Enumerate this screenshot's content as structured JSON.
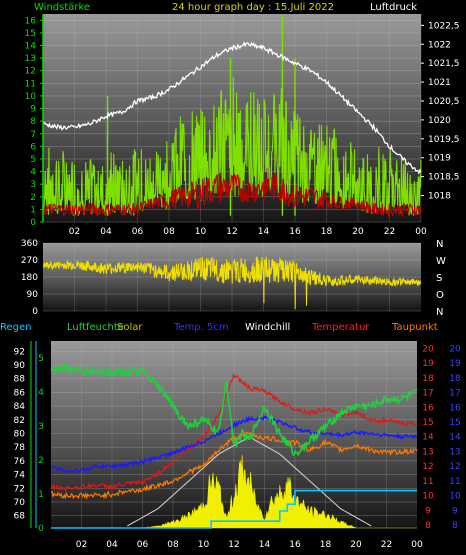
{
  "header": {
    "left": "Windstärke",
    "center": "24 hour graph day : 15.Juli 2022",
    "right": "Luftdruck"
  },
  "colors": {
    "wind": "#7fe000",
    "gust": "#c00000",
    "pressure": "#ffffff",
    "direction": "#f0e000",
    "humidity": "#20d040",
    "temperature": "#e01818",
    "dewpoint": "#ff7a00",
    "soil": "#1a1aff",
    "windchill": "#ffffff",
    "solar": "#f0f000",
    "rain": "#00c8ff",
    "axis_green": "#00e000",
    "axis_red": "#ff2020",
    "axis_blue": "#3030ff"
  },
  "chart_data": [
    {
      "type": "line",
      "title": "24 hour graph day : 15.Juli 2022",
      "x_ticks": [
        "02",
        "04",
        "06",
        "08",
        "10",
        "12",
        "14",
        "16",
        "18",
        "20",
        "22",
        "00"
      ],
      "xlim": [
        0,
        24
      ],
      "ylabel_left": "Windstärke",
      "ylim_left": [
        0,
        16.5
      ],
      "yticks_left": [
        "0",
        "1",
        "2",
        "3",
        "4",
        "5",
        "6",
        "7",
        "8",
        "9",
        "10",
        "11",
        "12",
        "13",
        "14",
        "15",
        "16"
      ],
      "ylabel_right": "Luftdruck",
      "ylim_right": [
        1017.3,
        1022.8
      ],
      "yticks_right": [
        "1018",
        "1018,5",
        "1019",
        "1019,5",
        "1020",
        "1020,5",
        "1021",
        "1021,5",
        "1022",
        "1022,5"
      ],
      "series": [
        {
          "name": "Luftdruck",
          "axis": "right",
          "x": [
            0,
            1,
            2,
            3,
            4,
            5,
            6,
            7,
            8,
            9,
            10,
            11,
            12,
            13,
            14,
            15,
            16,
            17,
            18,
            19,
            20,
            21,
            22,
            23,
            24
          ],
          "values": [
            1019.9,
            1019.8,
            1019.8,
            1019.9,
            1020.1,
            1020.2,
            1020.5,
            1020.6,
            1020.8,
            1021.1,
            1021.4,
            1021.7,
            1021.9,
            1022.0,
            1021.9,
            1021.7,
            1021.5,
            1021.3,
            1021.0,
            1020.6,
            1020.2,
            1019.8,
            1019.3,
            1018.9,
            1018.6
          ]
        }
      ],
      "wind_band_x": [
        0,
        1,
        2,
        3,
        4,
        5,
        6,
        7,
        8,
        9,
        10,
        11,
        12,
        13,
        14,
        15,
        16,
        17,
        18,
        19,
        20,
        21,
        22,
        23,
        24
      ],
      "wind_band_low": [
        0.5,
        0.5,
        0.5,
        0.5,
        0.5,
        0.5,
        0.5,
        1,
        1,
        1.5,
        1.5,
        2,
        2,
        2,
        2,
        2,
        1.5,
        1.5,
        1,
        1,
        1,
        0.5,
        0.5,
        0.5,
        0.5
      ],
      "wind_band_high": [
        6,
        6,
        5,
        5,
        6,
        5,
        6,
        6,
        7,
        9,
        9,
        10,
        12,
        11,
        10,
        11,
        10,
        8,
        8,
        7,
        6,
        6,
        6,
        5,
        5
      ],
      "wind_peaks": [
        {
          "x": 4.1,
          "y": 10
        },
        {
          "x": 11.9,
          "y": 13
        },
        {
          "x": 15.2,
          "y": 16.3
        },
        {
          "x": 16.0,
          "y": 13
        }
      ],
      "gust_band_x": [
        0,
        1,
        2,
        3,
        4,
        5,
        6,
        7,
        8,
        9,
        10,
        11,
        12,
        13,
        14,
        15,
        16,
        17,
        18,
        19,
        20,
        21,
        22,
        23,
        24
      ],
      "gust_band_low": [
        0.5,
        0.5,
        0.5,
        0.5,
        0.5,
        0.5,
        0.5,
        1,
        1,
        1,
        1,
        1.5,
        1.5,
        1.5,
        1.5,
        1.5,
        1,
        1,
        1,
        1,
        1,
        0.5,
        0.5,
        0.5,
        0.5
      ],
      "gust_band_high": [
        1.5,
        1.5,
        1.5,
        1.5,
        1.5,
        1.5,
        1.5,
        2,
        2.5,
        3,
        3.5,
        4,
        4,
        3.5,
        4,
        4,
        3,
        3,
        2.5,
        2,
        2,
        1.5,
        1.5,
        1.5,
        1.5
      ]
    },
    {
      "type": "line",
      "ylabel_left": "",
      "ylim": [
        0,
        360
      ],
      "yticks": [
        "0",
        "90",
        "180",
        "270",
        "360"
      ],
      "direction_labels": [
        "N",
        "W",
        "S",
        "O",
        "N"
      ],
      "x_ticks": [],
      "series": [
        {
          "name": "",
          "x": [
            0,
            2,
            4,
            6,
            8,
            10,
            12,
            14,
            16,
            18,
            20,
            22,
            24
          ],
          "values": [
            240,
            245,
            225,
            235,
            200,
            225,
            210,
            220,
            205,
            160,
            165,
            155,
            150
          ],
          "spread": [
            20,
            25,
            30,
            30,
            45,
            60,
            70,
            70,
            60,
            30,
            25,
            20,
            20
          ]
        }
      ]
    },
    {
      "type": "line",
      "x_ticks": [
        "02",
        "04",
        "06",
        "08",
        "10",
        "12",
        "14",
        "16",
        "18",
        "20",
        "22",
        "00"
      ],
      "xlim": [
        0,
        24
      ],
      "legend": [
        "Regen",
        "Luftfeuchte",
        "Solar",
        "Temp. 5cm",
        "Windchill",
        "Temperatur",
        "Taupunkt"
      ],
      "yticks_humidity": [
        "68",
        "70",
        "72",
        "74",
        "76",
        "78",
        "80",
        "82",
        "84",
        "86",
        "88",
        "90",
        "92"
      ],
      "ylim_humidity": [
        66.2,
        93.5
      ],
      "yticks_rain": [
        "0",
        "1",
        "2",
        "3",
        "4",
        "5"
      ],
      "ylim_rain": [
        0,
        5.5
      ],
      "yticks_temp_red": [
        "8",
        "9",
        "10",
        "11",
        "12",
        "13",
        "14",
        "15",
        "16",
        "17",
        "18",
        "19",
        "20"
      ],
      "yticks_temp_blue": [
        "8",
        "9",
        "10",
        "11",
        "12",
        "13",
        "14",
        "15",
        "16",
        "17",
        "18",
        "19",
        "20"
      ],
      "ylim_temp": [
        7.8,
        20.5
      ],
      "series": [
        {
          "name": "Luftfeuchte",
          "axis": "humidity",
          "x": [
            0,
            1,
            2,
            3,
            4,
            5,
            6,
            7,
            8,
            9,
            10,
            11,
            11.5,
            12,
            12.5,
            13,
            14,
            15,
            16,
            17,
            18,
            19,
            20,
            21,
            22,
            23,
            24
          ],
          "values": [
            89.5,
            89.5,
            89,
            89,
            89,
            89,
            89,
            87,
            84,
            81,
            82,
            80,
            88,
            78,
            80,
            79,
            84,
            80,
            77,
            79,
            81,
            83,
            84,
            84,
            85,
            85,
            86
          ]
        },
        {
          "name": "Temperatur",
          "axis": "temp",
          "x": [
            0,
            1,
            2,
            3,
            4,
            5,
            6,
            7,
            8,
            9,
            10,
            11,
            12,
            13,
            14,
            15,
            16,
            17,
            18,
            19,
            20,
            21,
            22,
            23,
            24
          ],
          "values": [
            10.6,
            10.5,
            10.6,
            10.7,
            10.6,
            10.8,
            10.9,
            11.5,
            12.3,
            13.1,
            14.0,
            15.5,
            18.2,
            17.3,
            17.1,
            16.4,
            15.9,
            15.6,
            15.9,
            15.4,
            15.7,
            15.1,
            15.1,
            14.9,
            14.9
          ]
        },
        {
          "name": "Temp. 5cm",
          "axis": "temp",
          "x": [
            0,
            1,
            2,
            3,
            4,
            5,
            6,
            7,
            8,
            9,
            10,
            11,
            12,
            13,
            14,
            15,
            16,
            17,
            18,
            19,
            20,
            21,
            22,
            23,
            24
          ],
          "values": [
            11.9,
            11.7,
            11.7,
            12.0,
            12.0,
            12.1,
            12.3,
            12.6,
            12.9,
            13.3,
            13.7,
            14.2,
            14.8,
            15.2,
            15.3,
            15.0,
            14.6,
            14.3,
            14.2,
            14.1,
            14.3,
            14.2,
            14.1,
            14.0,
            14.0
          ]
        },
        {
          "name": "Taupunkt",
          "axis": "temp",
          "x": [
            0,
            1,
            2,
            3,
            4,
            5,
            6,
            7,
            8,
            9,
            10,
            11,
            12,
            13,
            14,
            15,
            16,
            17,
            18,
            19,
            20,
            21,
            22,
            23,
            24
          ],
          "values": [
            10.1,
            10.0,
            10.0,
            10.0,
            10.1,
            10.3,
            10.4,
            10.7,
            11.0,
            11.6,
            12.0,
            13.1,
            13.9,
            14.2,
            13.9,
            13.8,
            13.6,
            13.1,
            13.6,
            13.1,
            13.4,
            13.1,
            12.9,
            13.0,
            13.0
          ]
        },
        {
          "name": "Solar",
          "axis": "humidity",
          "x": [
            0,
            6,
            7,
            8,
            9,
            10,
            10.5,
            11,
            11.5,
            12,
            12.5,
            13,
            13.5,
            14,
            14.5,
            15,
            15.5,
            16,
            17,
            18,
            19,
            20,
            24
          ],
          "values": [
            66.2,
            66.2,
            66.5,
            67.2,
            68.2,
            70,
            74,
            73,
            67.5,
            72,
            76,
            74,
            70,
            68,
            71,
            72,
            74,
            71,
            69,
            68.5,
            67.2,
            66.2,
            66.2
          ]
        },
        {
          "name": "Regen",
          "axis": "rain",
          "x": [
            0,
            10,
            10.5,
            14.5,
            15,
            15.5,
            16,
            16.5,
            24
          ],
          "values": [
            0,
            0,
            0.2,
            0.2,
            0.5,
            0.7,
            1.1,
            1.1,
            1.1
          ]
        },
        {
          "name": "Windchill",
          "axis": "humidity",
          "x": [
            5,
            7,
            9,
            11,
            13,
            15,
            17,
            19,
            21
          ],
          "values": [
            66.5,
            69,
            73,
            77,
            79.5,
            77,
            73,
            69,
            66.5
          ]
        }
      ]
    }
  ]
}
